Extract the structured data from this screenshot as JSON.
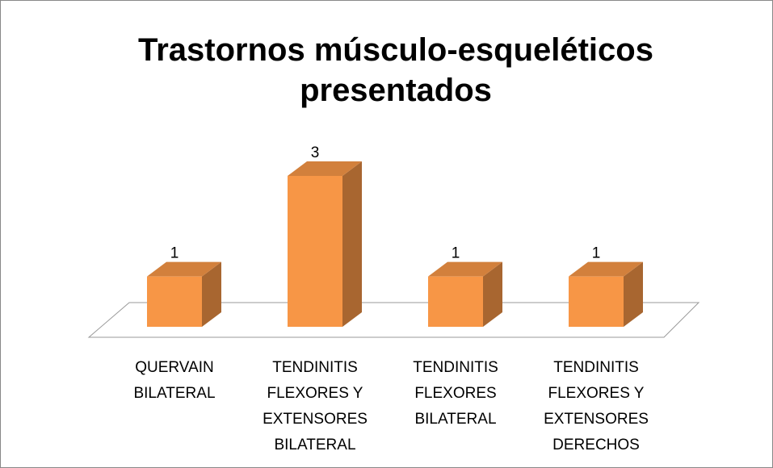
{
  "chart_data": {
    "type": "bar3d",
    "title": "Trastornos músculo-esqueléticos presentados",
    "categories": [
      "QUERVAIN BILATERAL",
      "TENDINITIS FLEXORES Y EXTENSORES BILATERAL",
      "TENDINITIS FLEXORES BILATERAL",
      "TENDINITIS FLEXORES Y EXTENSORES DERECHOS"
    ],
    "values": [
      1,
      3,
      1,
      1
    ],
    "color": "#f79646"
  }
}
